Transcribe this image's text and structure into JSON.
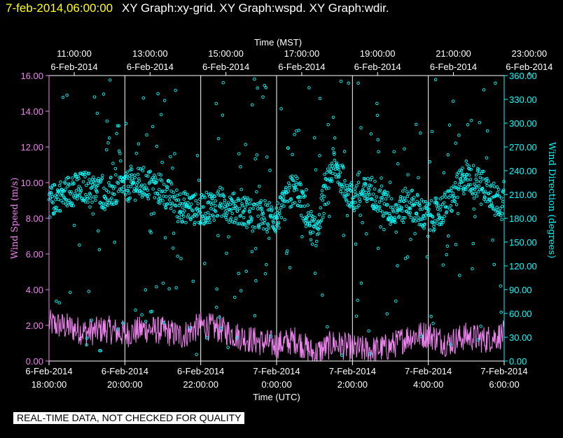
{
  "header": {
    "timestamp": "7-feb-2014,06:00:00",
    "title": "XY Graph:xy-grid.  XY Graph:wspd.  XY Graph:wdir."
  },
  "disclaimer": "REAL-TIME DATA, NOT CHECKED FOR QUALITY",
  "chart_data": {
    "type": "scatter",
    "title": "",
    "x_top": {
      "label": "Time (MST)",
      "ticks": [
        {
          "time": "11:00:00",
          "date": "6-Feb-2014"
        },
        {
          "time": "13:00:00",
          "date": "6-Feb-2014"
        },
        {
          "time": "15:00:00",
          "date": "6-Feb-2014"
        },
        {
          "time": "17:00:00",
          "date": "6-Feb-2014"
        },
        {
          "time": "19:00:00",
          "date": "6-Feb-2014"
        },
        {
          "time": "21:00:00",
          "date": "6-Feb-2014"
        },
        {
          "time": "23:00:00",
          "date": "6-Feb-2014"
        }
      ]
    },
    "x_bottom": {
      "label": "Time (UTC)",
      "range": [
        "6-Feb-2014 18:00:00",
        "7-Feb-2014 6:00:00"
      ],
      "ticks": [
        {
          "date": "6-Feb-2014",
          "time": "18:00:00"
        },
        {
          "date": "6-Feb-2014",
          "time": "20:00:00"
        },
        {
          "date": "6-Feb-2014",
          "time": "22:00:00"
        },
        {
          "date": "7-Feb-2014",
          "time": "0:00:00"
        },
        {
          "date": "7-Feb-2014",
          "time": "2:00:00"
        },
        {
          "date": "7-Feb-2014",
          "time": "4:00:00"
        },
        {
          "date": "7-Feb-2014",
          "time": "6:00:00"
        }
      ]
    },
    "y_left": {
      "label": "Wind Speed (m/s)",
      "ylim": [
        0,
        16
      ],
      "ticks": [
        "0.00",
        "2.00",
        "4.00",
        "6.00",
        "8.00",
        "10.00",
        "12.00",
        "14.00",
        "16.00"
      ]
    },
    "y_right": {
      "label": "Wind Direction (degrees)",
      "ylim": [
        0,
        360
      ],
      "ticks": [
        "0.00",
        "30.00",
        "60.00",
        "90.00",
        "120.00",
        "150.00",
        "180.00",
        "210.00",
        "240.00",
        "270.00",
        "300.00",
        "330.00",
        "360.00"
      ]
    },
    "grid": "vertical",
    "series": [
      {
        "axis": "left",
        "color": "#ee82ee",
        "style": "line",
        "x_hours_utc": [
          0,
          0.5,
          1,
          1.5,
          2,
          2.5,
          3,
          3.5,
          4,
          4.5,
          5,
          5.5,
          6,
          6.5,
          7,
          7.5,
          8,
          8.5,
          9,
          9.5,
          10,
          10.5,
          11,
          11.5,
          12
        ],
        "values": [
          2.1,
          1.9,
          1.6,
          1.8,
          1.5,
          1.8,
          1.7,
          1.4,
          2.0,
          1.8,
          1.4,
          1.1,
          0.9,
          1.2,
          0.4,
          1.0,
          0.7,
          0.6,
          0.8,
          1.4,
          1.5,
          1.0,
          1.4,
          1.2,
          1.5
        ]
      },
      {
        "axis": "right",
        "color": "#00ffff",
        "style": "markers",
        "x_hours_utc": [
          0,
          0.5,
          1,
          1.5,
          2,
          2.5,
          3,
          3.5,
          4,
          4.5,
          5,
          5.5,
          6,
          6.5,
          7,
          7.5,
          8,
          8.5,
          9,
          9.5,
          10,
          10.5,
          11,
          11.5,
          12
        ],
        "values": [
          200,
          215,
          220,
          210,
          220,
          225,
          215,
          195,
          190,
          200,
          190,
          185,
          180,
          220,
          160,
          250,
          205,
          215,
          190,
          200,
          180,
          195,
          235,
          220,
          195
        ]
      }
    ]
  }
}
